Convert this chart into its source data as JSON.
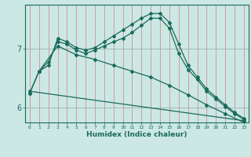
{
  "xlabel": "Humidex (Indice chaleur)",
  "bg_color": "#cce8e4",
  "line_color": "#1a6b5a",
  "xlim": [
    -0.5,
    23.5
  ],
  "ylim": [
    5.75,
    7.75
  ],
  "yticks": [
    6,
    7
  ],
  "xticks": [
    0,
    1,
    2,
    3,
    4,
    5,
    6,
    7,
    8,
    9,
    10,
    11,
    12,
    13,
    14,
    15,
    16,
    17,
    18,
    19,
    20,
    21,
    22,
    23
  ],
  "series": [
    {
      "x": [
        0,
        1,
        2,
        3,
        4,
        5,
        6,
        7,
        8,
        9,
        10,
        11,
        12,
        13,
        14,
        15,
        16,
        17,
        18,
        19,
        20,
        21,
        22,
        23
      ],
      "y": [
        6.25,
        6.62,
        6.72,
        7.18,
        7.12,
        7.02,
        6.98,
        7.02,
        7.12,
        7.22,
        7.32,
        7.42,
        7.52,
        7.6,
        7.6,
        7.45,
        7.08,
        6.72,
        6.52,
        6.32,
        6.18,
        6.05,
        5.92,
        5.82
      ]
    },
    {
      "x": [
        0,
        1,
        2,
        3,
        4,
        5,
        6,
        7,
        8,
        9,
        10,
        11,
        12,
        13,
        14,
        15,
        16,
        17,
        18,
        19,
        20,
        21,
        22,
        23
      ],
      "y": [
        6.25,
        6.62,
        6.78,
        7.12,
        7.08,
        6.98,
        6.92,
        6.98,
        7.05,
        7.12,
        7.18,
        7.28,
        7.4,
        7.52,
        7.52,
        7.35,
        6.92,
        6.65,
        6.48,
        6.28,
        6.15,
        6.02,
        5.9,
        5.8
      ]
    },
    {
      "x": [
        1,
        3,
        5,
        7,
        9,
        11,
        13,
        15,
        17,
        19,
        21,
        23
      ],
      "y": [
        6.62,
        7.05,
        6.9,
        6.82,
        6.72,
        6.62,
        6.52,
        6.38,
        6.22,
        6.05,
        5.9,
        5.75
      ]
    },
    {
      "x": [
        0,
        23
      ],
      "y": [
        6.28,
        5.78
      ]
    }
  ]
}
